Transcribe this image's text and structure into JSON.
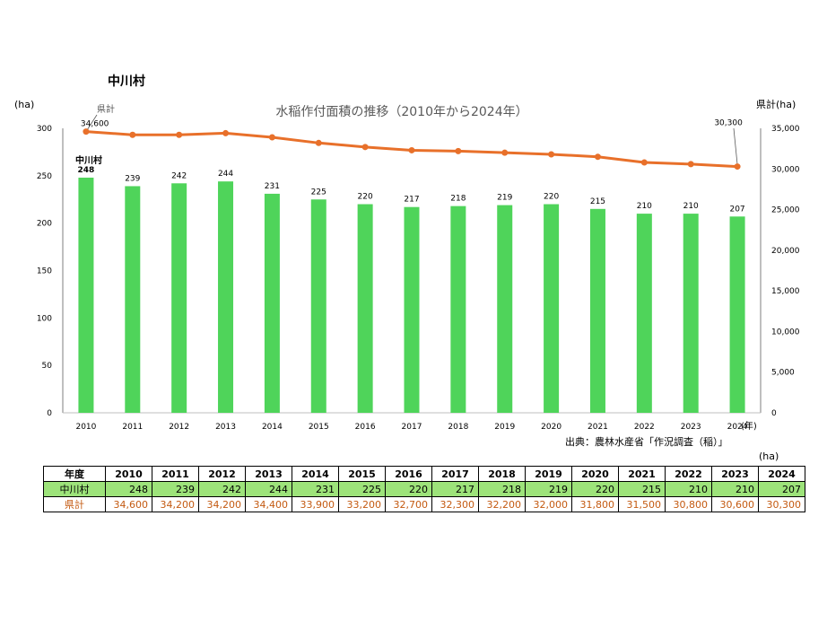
{
  "village_title": "中川村",
  "source": "出典：農林水産省「作況調査（稲）」",
  "table_unit": "(ha)",
  "chart_data": {
    "type": "bar+line",
    "title": "水稲作付面積の推移（2010年から2024年）",
    "categories": [
      "2010",
      "2011",
      "2012",
      "2013",
      "2014",
      "2015",
      "2016",
      "2017",
      "2018",
      "2019",
      "2020",
      "2021",
      "2022",
      "2023",
      "2024"
    ],
    "x_unit": "(年)",
    "left_axis": {
      "label": "(ha)",
      "ticks": [
        0,
        50,
        100,
        150,
        200,
        250,
        300
      ],
      "range": [
        0,
        300
      ]
    },
    "right_axis": {
      "label": "県計(ha)",
      "ticks": [
        "0",
        "5,000",
        "10,000",
        "15,000",
        "20,000",
        "25,000",
        "30,000",
        "35,000"
      ],
      "range": [
        0,
        35000
      ]
    },
    "series": [
      {
        "name": "中川村",
        "type": "bar",
        "axis": "left",
        "color": "#4fd45a",
        "values": [
          248,
          239,
          242,
          244,
          231,
          225,
          220,
          217,
          218,
          219,
          220,
          215,
          210,
          210,
          207
        ]
      },
      {
        "name": "県計",
        "type": "line",
        "axis": "right",
        "color": "#e8702a",
        "values": [
          34600,
          34200,
          34200,
          34400,
          33900,
          33200,
          32700,
          32300,
          32200,
          32000,
          31800,
          31500,
          30800,
          30600,
          30300
        ],
        "labels": {
          "first": "34,600",
          "last": "30,300"
        }
      }
    ]
  },
  "table": {
    "header_label": "年度",
    "years": [
      "2010",
      "2011",
      "2012",
      "2013",
      "2014",
      "2015",
      "2016",
      "2017",
      "2018",
      "2019",
      "2020",
      "2021",
      "2022",
      "2023",
      "2024"
    ],
    "rows": [
      {
        "label": "中川村",
        "values": [
          "248",
          "239",
          "242",
          "244",
          "231",
          "225",
          "220",
          "217",
          "218",
          "219",
          "220",
          "215",
          "210",
          "210",
          "207"
        ]
      },
      {
        "label": "県計",
        "values": [
          "34,600",
          "34,200",
          "34,200",
          "34,400",
          "33,900",
          "33,200",
          "32,700",
          "32,300",
          "32,200",
          "32,000",
          "31,800",
          "31,500",
          "30,800",
          "30,600",
          "30,300"
        ]
      }
    ]
  }
}
